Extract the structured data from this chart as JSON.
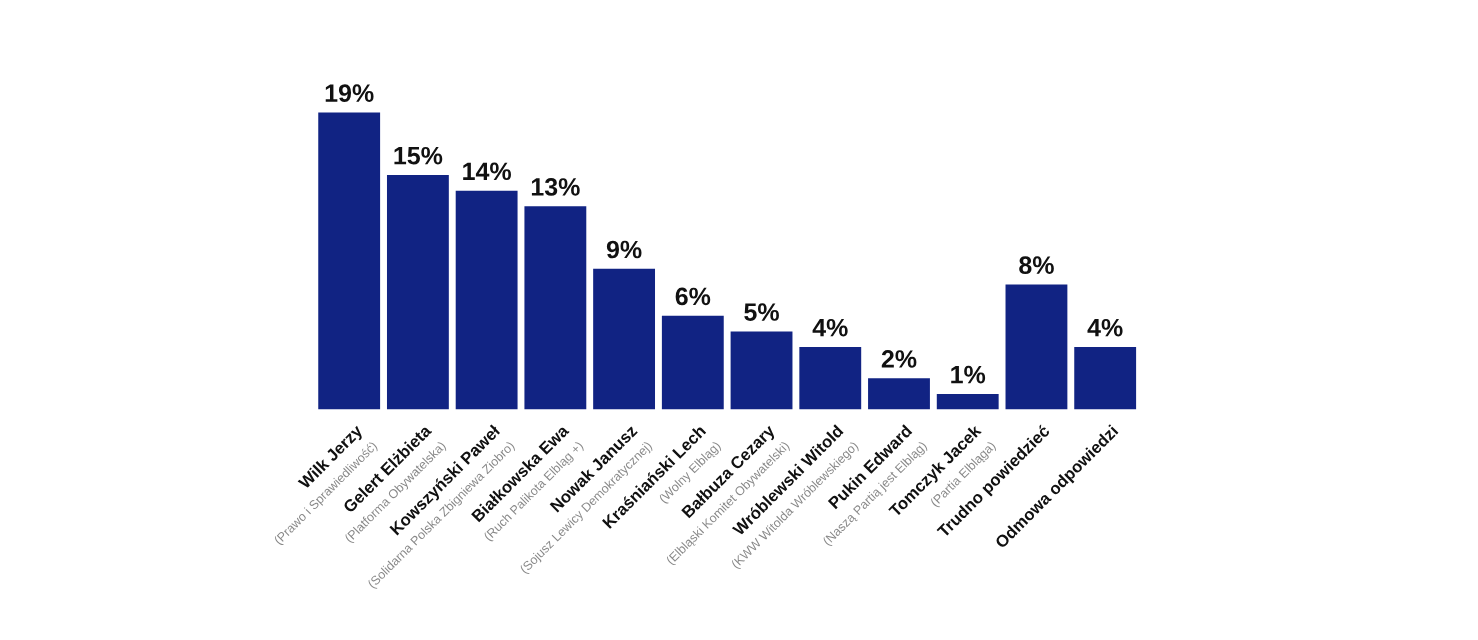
{
  "chart_data": {
    "type": "bar",
    "categories": [
      "Wilk Jerzy\n(Prawo i Sprawiedliwość)",
      "Gelert Elżbieta\n(Platforma Obywatelska)",
      "Kowszyński Paweł\n(Solidarna Polska Zbigniewa Ziobro)",
      "Białkowska Ewa\n(Ruch Palikota Elbląg +)",
      "Nowak Janusz\n(Sojusz Lewicy Demokratycznej)",
      "Kraśniański Lech\n(Wolny Elbląg)",
      "Bałbuza Cezary\n(Elbląski Komitet Obywatelski)",
      "Wróblewski Witold\n(KWW Witolda Wróblewskiego)",
      "Pukin Edward\n(Naszą Partią jest Elbląg)",
      "Tomczyk Jacek\n(Partia Elbląga)",
      "Trudno powiedzieć",
      "Odmowa odpowiedzi"
    ],
    "values": [
      19,
      15,
      14,
      13,
      9,
      6,
      5,
      4,
      2,
      1,
      8,
      4
    ],
    "value_labels": [
      "19%",
      "15%",
      "14%",
      "13%",
      "9%",
      "6%",
      "5%",
      "4%",
      "2%",
      "1%",
      "8%",
      "4%"
    ],
    "color": "#112383"
  }
}
